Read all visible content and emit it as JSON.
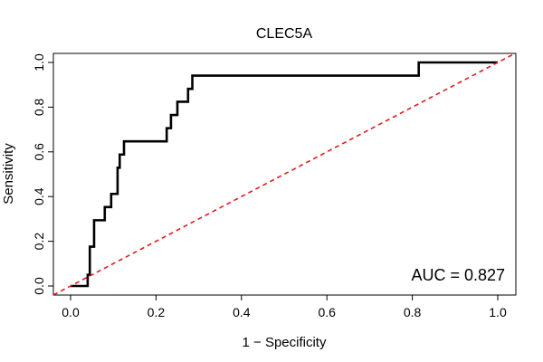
{
  "chart_data": {
    "type": "line",
    "title": "CLEC5A",
    "xlabel": "1 − Specificity",
    "ylabel": "Sensitivity",
    "xlim": [
      0,
      1
    ],
    "ylim": [
      0,
      1
    ],
    "x_ticks": [
      "0.0",
      "0.2",
      "0.4",
      "0.6",
      "0.8",
      "1.0"
    ],
    "y_ticks": [
      "0.0",
      "0.2",
      "0.4",
      "0.6",
      "0.8",
      "1.0"
    ],
    "annotation": "AUC = 0.827",
    "colors": {
      "roc": "#000000",
      "reference": "#e31a1c",
      "axis": "#000000"
    },
    "series": [
      {
        "name": "ROC curve",
        "style": "solid",
        "x": [
          0.0,
          0.04,
          0.04,
          0.045,
          0.045,
          0.055,
          0.055,
          0.06,
          0.06,
          0.08,
          0.08,
          0.095,
          0.095,
          0.11,
          0.11,
          0.115,
          0.115,
          0.125,
          0.125,
          0.225,
          0.225,
          0.235,
          0.235,
          0.25,
          0.25,
          0.275,
          0.275,
          0.285,
          0.285,
          0.815,
          0.815,
          1.0
        ],
        "y": [
          0.0,
          0.0,
          0.05,
          0.05,
          0.176,
          0.176,
          0.294,
          0.294,
          0.294,
          0.294,
          0.353,
          0.353,
          0.412,
          0.412,
          0.529,
          0.529,
          0.588,
          0.588,
          0.647,
          0.647,
          0.706,
          0.706,
          0.765,
          0.765,
          0.824,
          0.824,
          0.882,
          0.882,
          0.941,
          0.941,
          1.0,
          1.0
        ]
      },
      {
        "name": "Chance line",
        "style": "dashed",
        "x": [
          -0.04,
          1.04
        ],
        "y": [
          -0.04,
          1.04
        ]
      }
    ]
  }
}
